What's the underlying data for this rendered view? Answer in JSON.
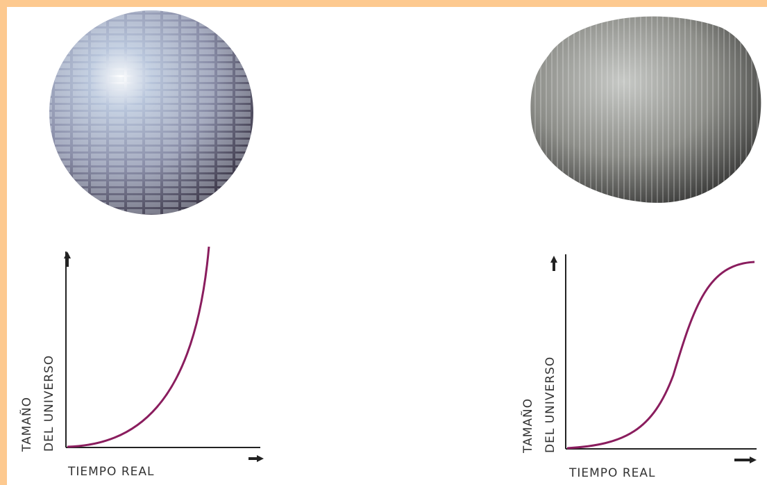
{
  "panels": [
    {
      "y_label": [
        "TAMAÑO",
        "DEL UNIVERSO"
      ],
      "x_label": "TIEMPO REAL"
    },
    {
      "y_label": [
        "TAMAÑO",
        "DEL UNIVERSO"
      ],
      "x_label": "TIEMPO REAL"
    }
  ]
}
